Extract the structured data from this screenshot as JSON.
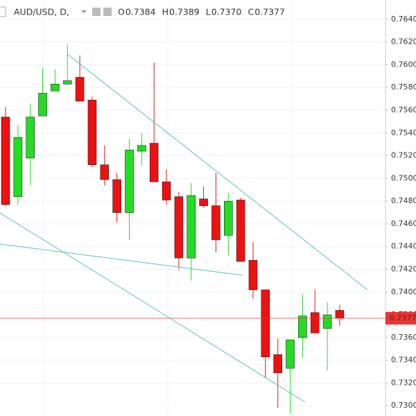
{
  "chart_data": {
    "type": "candlestick",
    "header": {
      "symbol": "AUD/USD, D,",
      "ohlc": [
        {
          "label": "O",
          "value": "0.7384"
        },
        {
          "label": "H",
          "value": "0.7389"
        },
        {
          "label": "L",
          "value": "0.7370"
        },
        {
          "label": "C",
          "value": "0.7377"
        }
      ]
    },
    "open": [
      0.7554,
      0.7484,
      0.7518,
      0.7555,
      0.7577,
      0.7583,
      0.7589,
      0.7569,
      0.7512,
      0.7499,
      0.747,
      0.7524,
      0.7531,
      0.7497,
      0.7484,
      0.743,
      0.7482,
      0.7476,
      0.745,
      0.7481,
      0.7428,
      0.7402,
      0.7345,
      0.7333,
      0.736,
      0.7382,
      0.7368,
      0.7384
    ],
    "high": [
      0.7563,
      0.7547,
      0.7566,
      0.7597,
      0.7596,
      0.7618,
      0.7608,
      0.7572,
      0.7529,
      0.7505,
      0.7535,
      0.754,
      0.7602,
      0.7508,
      0.7488,
      0.7496,
      0.7493,
      0.7505,
      0.7487,
      0.7483,
      0.7444,
      0.7402,
      0.7359,
      0.7358,
      0.7398,
      0.7402,
      0.7391,
      0.7389
    ],
    "low": [
      0.7476,
      0.7477,
      0.7494,
      0.7555,
      0.7577,
      0.7583,
      0.7568,
      0.751,
      0.7494,
      0.7461,
      0.7446,
      0.7511,
      0.7497,
      0.7477,
      0.742,
      0.741,
      0.7474,
      0.7435,
      0.7432,
      0.7427,
      0.7394,
      0.7325,
      0.7298,
      0.7293,
      0.7342,
      0.7364,
      0.7331,
      0.737
    ],
    "close": [
      0.7477,
      0.7536,
      0.7554,
      0.7575,
      0.7583,
      0.7586,
      0.7568,
      0.7512,
      0.7499,
      0.747,
      0.7525,
      0.7529,
      0.7497,
      0.7481,
      0.743,
      0.7485,
      0.7476,
      0.7446,
      0.748,
      0.7427,
      0.7402,
      0.7343,
      0.7329,
      0.7358,
      0.7379,
      0.7364,
      0.738,
      0.7377
    ],
    "up_color": "#22dd22",
    "down_color": "#ee1111",
    "ylim": [
      0.7291,
      0.7657
    ],
    "yticks": [
      {
        "value": 0.73,
        "label": "0.7300"
      },
      {
        "value": 0.732,
        "label": "0.7320"
      },
      {
        "value": 0.734,
        "label": "0.7340"
      },
      {
        "value": 0.736,
        "label": "0.7360"
      },
      {
        "value": 0.738,
        "label": "0.7380"
      },
      {
        "value": 0.74,
        "label": "0.7400"
      },
      {
        "value": 0.742,
        "label": "0.7420"
      },
      {
        "value": 0.744,
        "label": "0.7440"
      },
      {
        "value": 0.746,
        "label": "0.7460"
      },
      {
        "value": 0.748,
        "label": "0.7480"
      },
      {
        "value": 0.75,
        "label": "0.7500"
      },
      {
        "value": 0.752,
        "label": "0.7520"
      },
      {
        "value": 0.754,
        "label": "0.7540"
      },
      {
        "value": 0.756,
        "label": "0.7560"
      },
      {
        "value": 0.758,
        "label": "0.7580"
      },
      {
        "value": 0.76,
        "label": "0.7600"
      },
      {
        "value": 0.762,
        "label": "0.7620"
      },
      {
        "value": 0.764,
        "label": "0.7640"
      }
    ],
    "price_line": {
      "value": 0.7377,
      "label": "0.7377",
      "color": "#ee3333"
    },
    "grid": true
  }
}
